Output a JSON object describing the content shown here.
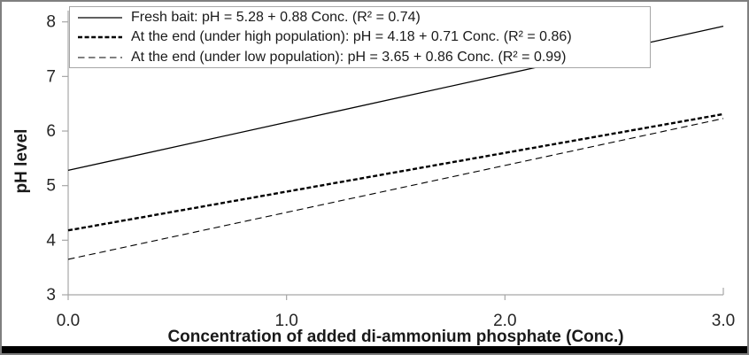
{
  "frame": {
    "border_color": "#7f7f7f",
    "background": "#ffffff",
    "bottom_bar_color": "#000000"
  },
  "chart_data": {
    "type": "line",
    "title": "",
    "xlabel": "Concentration of added di-ammonium phosphate (Conc.)",
    "ylabel": "pH level",
    "xlim": [
      0,
      3
    ],
    "ylim": [
      3,
      8
    ],
    "grid": false,
    "legend_position": "top-left",
    "axis_color": "#a6a6a6",
    "tick_label_color": "#262626",
    "xticks": [
      {
        "value": 0,
        "label": "0.0"
      },
      {
        "value": 1,
        "label": "1.0"
      },
      {
        "value": 2,
        "label": "2.0"
      },
      {
        "value": 3,
        "label": "3.0"
      }
    ],
    "yticks": [
      {
        "value": 3,
        "label": "3"
      },
      {
        "value": 4,
        "label": "4"
      },
      {
        "value": 5,
        "label": "5"
      },
      {
        "value": 6,
        "label": "6"
      },
      {
        "value": 7,
        "label": "7"
      },
      {
        "value": 8,
        "label": "8"
      }
    ],
    "series": [
      {
        "name": "Fresh bait: pH = 5.28 + 0.88 Conc. (R² = 0.74)",
        "equation": {
          "intercept": 5.28,
          "slope": 0.88,
          "r2": 0.74
        },
        "line_style": "solid",
        "color": "#000000",
        "stroke_width": 1.3,
        "dash": "",
        "x": [
          0,
          3
        ],
        "y": [
          5.28,
          7.92
        ]
      },
      {
        "name": "At the end (under high population): pH = 4.18 + 0.71 Conc. (R² = 0.86)",
        "equation": {
          "intercept": 4.18,
          "slope": 0.71,
          "r2": 0.86
        },
        "line_style": "dashed-bold",
        "color": "#000000",
        "stroke_width": 2.4,
        "dash": "5 2.6",
        "x": [
          0,
          3
        ],
        "y": [
          4.18,
          6.31
        ]
      },
      {
        "name": "At the end (under low population): pH = 3.65 + 0.86 Conc. (R² = 0.99)",
        "equation": {
          "intercept": 3.65,
          "slope": 0.86,
          "r2": 0.99
        },
        "line_style": "dashed",
        "color": "#000000",
        "stroke_width": 1.1,
        "dash": "7.5 4.5",
        "x": [
          0,
          3
        ],
        "y": [
          3.65,
          6.23
        ]
      }
    ]
  }
}
